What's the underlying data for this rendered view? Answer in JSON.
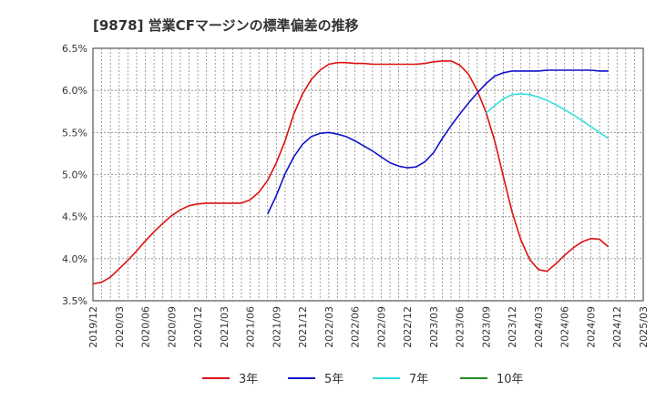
{
  "chart_data": {
    "type": "line",
    "title": "[9878]  営業CFマージンの標準偏差の推移",
    "xlabel": "",
    "ylabel": "",
    "ylim": [
      3.5,
      6.5
    ],
    "yticks": [
      "6.5%",
      "6.0%",
      "5.5%",
      "5.0%",
      "4.5%",
      "4.0%",
      "3.5%"
    ],
    "ytick_values": [
      6.5,
      6.0,
      5.5,
      5.0,
      4.5,
      4.0,
      3.5
    ],
    "xticks": [
      "2019/12",
      "2020/03",
      "2020/06",
      "2020/09",
      "2020/12",
      "2021/03",
      "2021/06",
      "2021/09",
      "2021/12",
      "2022/03",
      "2022/06",
      "2022/09",
      "2022/12",
      "2023/03",
      "2023/06",
      "2023/09",
      "2023/12",
      "2024/03",
      "2024/06",
      "2024/09",
      "2024/12",
      "2025/03"
    ],
    "grid": true,
    "legend_position": "bottom",
    "series": [
      {
        "name": "3年",
        "color": "#dd1111",
        "start_index": 0,
        "values": [
          3.7,
          3.72,
          3.78,
          3.88,
          3.98,
          4.09,
          4.21,
          4.32,
          4.42,
          4.51,
          4.58,
          4.63,
          4.65,
          4.66,
          4.66,
          4.66,
          4.66,
          4.66,
          4.7,
          4.79,
          4.93,
          5.14,
          5.4,
          5.72,
          5.96,
          6.13,
          6.24,
          6.31,
          6.33,
          6.33,
          6.32,
          6.32,
          6.31,
          6.31,
          6.31,
          6.31,
          6.31,
          6.31,
          6.32,
          6.34,
          6.35,
          6.35,
          6.3,
          6.19,
          6.0,
          5.74,
          5.4,
          4.97,
          4.55,
          4.22,
          3.99,
          3.87,
          3.85,
          3.94,
          4.04,
          4.13,
          4.2,
          4.24,
          4.23,
          4.14
        ]
      },
      {
        "name": "5年",
        "color": "#1111cc",
        "start_index": 20,
        "values": [
          4.53,
          4.75,
          5.01,
          5.21,
          5.36,
          5.45,
          5.49,
          5.5,
          5.48,
          5.45,
          5.4,
          5.34,
          5.28,
          5.21,
          5.14,
          5.1,
          5.08,
          5.09,
          5.15,
          5.26,
          5.43,
          5.58,
          5.72,
          5.85,
          5.97,
          6.08,
          6.17,
          6.21,
          6.23,
          6.23,
          6.23,
          6.23,
          6.24,
          6.24,
          6.24,
          6.24,
          6.24,
          6.24,
          6.23,
          6.23
        ]
      },
      {
        "name": "7年",
        "color": "#33dddd",
        "start_index": 45,
        "values": [
          5.73,
          5.82,
          5.9,
          5.95,
          5.96,
          5.95,
          5.92,
          5.88,
          5.83,
          5.77,
          5.71,
          5.64,
          5.57,
          5.5,
          5.43
        ]
      },
      {
        "name": "10年",
        "color": "#228822",
        "start_index": 0,
        "values": []
      }
    ]
  }
}
